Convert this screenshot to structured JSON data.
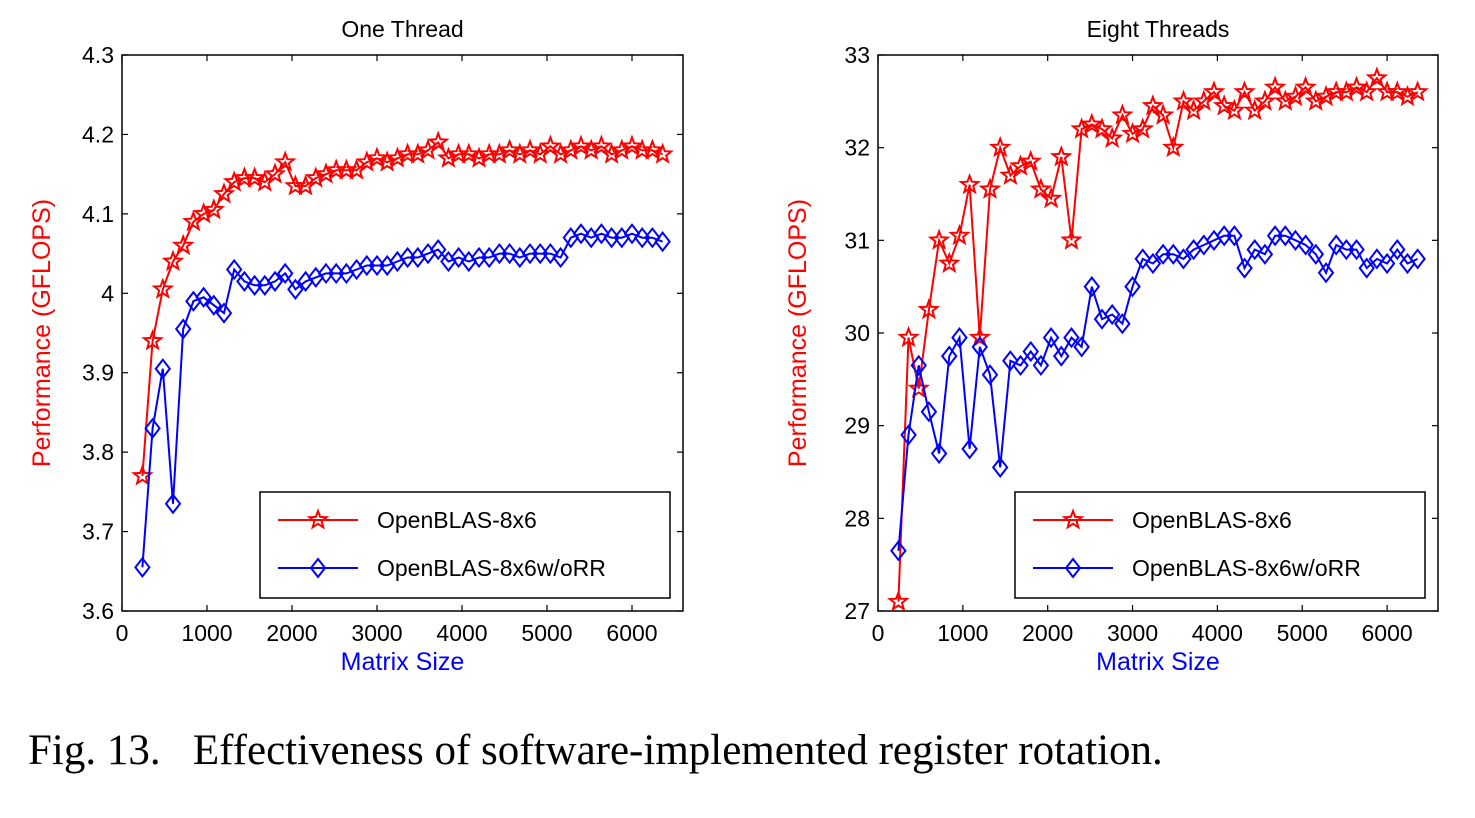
{
  "caption": "Fig. 13.   Effectiveness of software-implemented register rotation.",
  "colors": {
    "series1": "#ff0000",
    "series2": "#0000ff",
    "ylabel": "#ff0000",
    "xlabel": "#0000ff",
    "axis": "#000000"
  },
  "chart_data": [
    {
      "type": "line",
      "title": "One Thread",
      "xlabel": "Matrix Size",
      "ylabel": "Performance (GFLOPS)",
      "xlim": [
        0,
        6600
      ],
      "ylim": [
        3.6,
        4.3
      ],
      "xticks": [
        "0",
        "1000",
        "2000",
        "3000",
        "4000",
        "5000",
        "6000"
      ],
      "yticks": [
        "3.6",
        "3.7",
        "3.8",
        "3.9",
        "4",
        "4.1",
        "4.2",
        "4.3"
      ],
      "legend_position": "bottom-right",
      "x": [
        240,
        360,
        480,
        600,
        720,
        840,
        960,
        1080,
        1200,
        1320,
        1440,
        1560,
        1680,
        1800,
        1920,
        2040,
        2160,
        2280,
        2400,
        2520,
        2640,
        2760,
        2880,
        3000,
        3120,
        3240,
        3360,
        3480,
        3600,
        3720,
        3840,
        3960,
        4080,
        4200,
        4320,
        4440,
        4560,
        4680,
        4800,
        4920,
        5040,
        5160,
        5280,
        5400,
        5520,
        5640,
        5760,
        5880,
        6000,
        6120,
        6240,
        6360
      ],
      "series": [
        {
          "name": "OpenBLAS-8x6",
          "marker": "star",
          "values": [
            3.77,
            3.94,
            4.005,
            4.04,
            4.06,
            4.09,
            4.1,
            4.105,
            4.125,
            4.14,
            4.145,
            4.145,
            4.14,
            4.15,
            4.165,
            4.135,
            4.135,
            4.145,
            4.15,
            4.155,
            4.155,
            4.155,
            4.165,
            4.17,
            4.165,
            4.17,
            4.175,
            4.175,
            4.18,
            4.19,
            4.17,
            4.175,
            4.175,
            4.17,
            4.175,
            4.175,
            4.18,
            4.175,
            4.18,
            4.175,
            4.185,
            4.175,
            4.18,
            4.185,
            4.18,
            4.185,
            4.175,
            4.18,
            4.185,
            4.18,
            4.18,
            4.175
          ]
        },
        {
          "name": "OpenBLAS-8x6w/oRR",
          "marker": "diamond",
          "values": [
            3.655,
            3.83,
            3.905,
            3.735,
            3.955,
            3.99,
            3.995,
            3.985,
            3.975,
            4.03,
            4.015,
            4.01,
            4.01,
            4.015,
            4.025,
            4.005,
            4.015,
            4.02,
            4.025,
            4.025,
            4.025,
            4.03,
            4.035,
            4.035,
            4.035,
            4.04,
            4.045,
            4.045,
            4.05,
            4.055,
            4.04,
            4.045,
            4.04,
            4.045,
            4.045,
            4.05,
            4.05,
            4.045,
            4.05,
            4.05,
            4.05,
            4.045,
            4.07,
            4.075,
            4.07,
            4.075,
            4.07,
            4.07,
            4.075,
            4.07,
            4.07,
            4.065
          ]
        }
      ]
    },
    {
      "type": "line",
      "title": "Eight Threads",
      "xlabel": "Matrix Size",
      "ylabel": "Performance (GFLOPS)",
      "xlim": [
        0,
        6600
      ],
      "ylim": [
        27,
        33
      ],
      "xticks": [
        "0",
        "1000",
        "2000",
        "3000",
        "4000",
        "5000",
        "6000"
      ],
      "yticks": [
        "27",
        "28",
        "29",
        "30",
        "31",
        "32",
        "33"
      ],
      "legend_position": "bottom-right",
      "x": [
        240,
        360,
        480,
        600,
        720,
        840,
        960,
        1080,
        1200,
        1320,
        1440,
        1560,
        1680,
        1800,
        1920,
        2040,
        2160,
        2280,
        2400,
        2520,
        2640,
        2760,
        2880,
        3000,
        3120,
        3240,
        3360,
        3480,
        3600,
        3720,
        3840,
        3960,
        4080,
        4200,
        4320,
        4440,
        4560,
        4680,
        4800,
        4920,
        5040,
        5160,
        5280,
        5400,
        5520,
        5640,
        5760,
        5880,
        6000,
        6120,
        6240,
        6360
      ],
      "series": [
        {
          "name": "OpenBLAS-8x6",
          "marker": "star",
          "values": [
            27.1,
            29.95,
            29.4,
            30.25,
            31.0,
            30.75,
            31.05,
            31.6,
            29.95,
            31.55,
            32.0,
            31.7,
            31.8,
            31.85,
            31.55,
            31.45,
            31.9,
            31.0,
            32.2,
            32.25,
            32.2,
            32.1,
            32.35,
            32.15,
            32.2,
            32.45,
            32.35,
            32.0,
            32.5,
            32.4,
            32.5,
            32.6,
            32.45,
            32.4,
            32.6,
            32.4,
            32.5,
            32.65,
            32.5,
            32.55,
            32.65,
            32.5,
            32.55,
            32.6,
            32.6,
            32.65,
            32.6,
            32.75,
            32.6,
            32.6,
            32.55,
            32.6
          ]
        },
        {
          "name": "OpenBLAS-8x6w/oRR",
          "marker": "diamond",
          "values": [
            27.65,
            28.9,
            29.65,
            29.15,
            28.7,
            29.75,
            29.95,
            28.75,
            29.85,
            29.55,
            28.55,
            29.7,
            29.65,
            29.8,
            29.65,
            29.95,
            29.75,
            29.95,
            29.85,
            30.5,
            30.15,
            30.2,
            30.1,
            30.5,
            30.8,
            30.75,
            30.85,
            30.85,
            30.8,
            30.9,
            30.95,
            31.0,
            31.05,
            31.05,
            30.7,
            30.9,
            30.85,
            31.05,
            31.05,
            31.0,
            30.95,
            30.85,
            30.65,
            30.95,
            30.9,
            30.9,
            30.7,
            30.8,
            30.75,
            30.9,
            30.75,
            30.8
          ]
        }
      ]
    }
  ]
}
